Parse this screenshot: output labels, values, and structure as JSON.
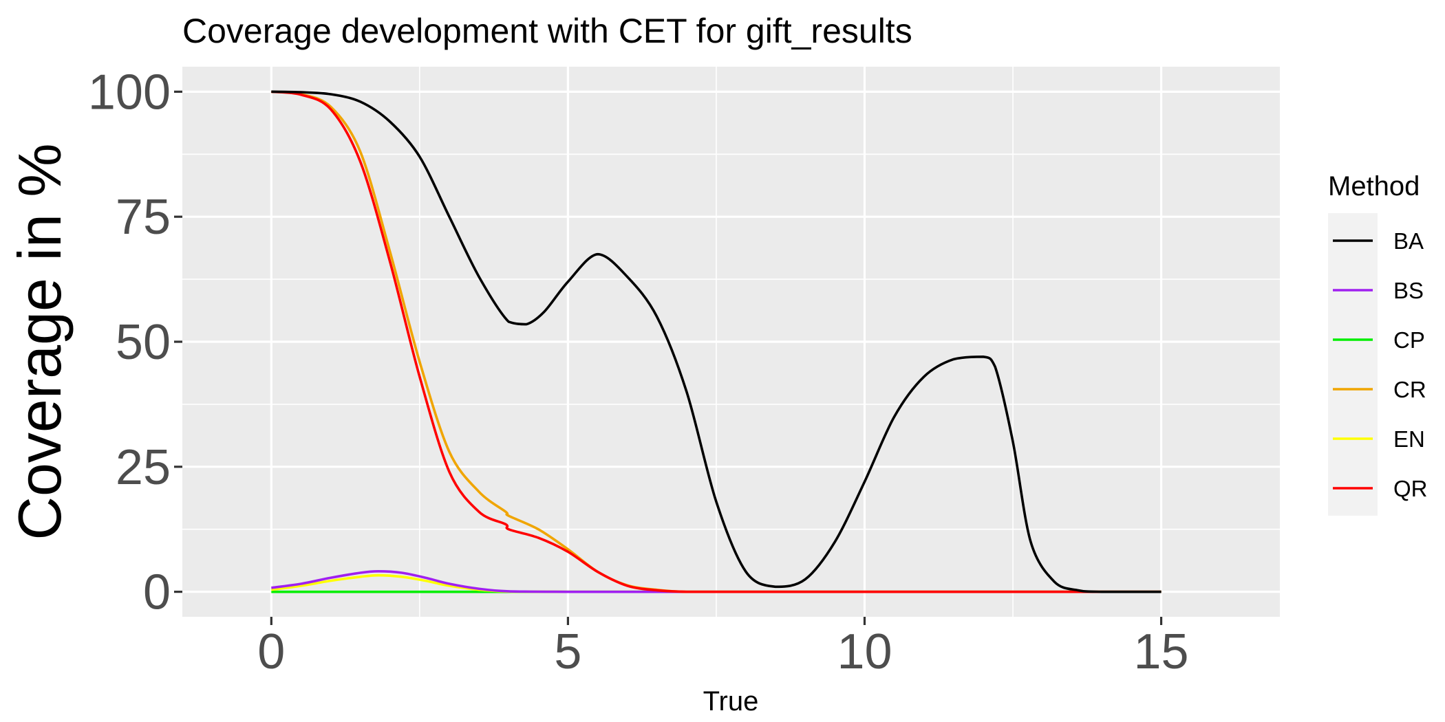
{
  "chart_data": {
    "type": "line",
    "title": "Coverage development with CET for gift_results",
    "xlabel": "True",
    "ylabel": "Coverage in %",
    "xlim": [
      -1.5,
      17.0
    ],
    "ylim": [
      -5,
      105
    ],
    "xticks": [
      0,
      5,
      10,
      15
    ],
    "yticks": [
      0,
      25,
      50,
      75,
      100
    ],
    "grid": true,
    "legend_title": "Method",
    "legend_position": "right",
    "series": [
      {
        "name": "BA",
        "color": "#000000",
        "x": [
          0,
          0.5,
          1.0,
          1.5,
          2.0,
          2.5,
          3.0,
          3.5,
          4.0,
          4.3,
          4.6,
          5.0,
          5.5,
          6.0,
          6.5,
          7.0,
          7.5,
          8.0,
          8.5,
          9.0,
          9.5,
          10.0,
          10.5,
          11.0,
          11.5,
          12.0,
          12.2,
          12.5,
          12.8,
          13.2,
          13.6,
          14.0,
          15.0
        ],
        "y": [
          100,
          99.9,
          99.5,
          98,
          94,
          87,
          75,
          63,
          54,
          53.5,
          56,
          62,
          67.5,
          63,
          55,
          40,
          18,
          4,
          1,
          2.5,
          10,
          22,
          35,
          43,
          46.5,
          47,
          45,
          30,
          10,
          2,
          0.3,
          0,
          0
        ]
      },
      {
        "name": "BS",
        "color": "#a020f0",
        "x": [
          0,
          0.5,
          1.0,
          1.5,
          1.8,
          2.2,
          2.6,
          3.0,
          3.5,
          4.0,
          5.0,
          6.0,
          8.0,
          15.0
        ],
        "y": [
          0.8,
          1.6,
          2.8,
          3.8,
          4.1,
          3.8,
          2.8,
          1.6,
          0.6,
          0.1,
          0,
          0,
          0,
          0
        ]
      },
      {
        "name": "CP",
        "color": "#00ee00",
        "x": [
          0,
          15.0
        ],
        "y": [
          0,
          0
        ]
      },
      {
        "name": "CR",
        "color": "#f0a500",
        "x": [
          0,
          0.5,
          1.0,
          1.5,
          2.0,
          2.5,
          3.0,
          3.5,
          3.95,
          4.0,
          4.5,
          5.0,
          5.5,
          6.0,
          6.5,
          7.0,
          8.0,
          15.0
        ],
        "y": [
          100,
          99.5,
          97,
          88,
          68,
          46,
          28,
          20,
          16,
          15.2,
          12.5,
          8.5,
          4,
          1.3,
          0.4,
          0,
          0,
          0
        ]
      },
      {
        "name": "EN",
        "color": "#ffff00",
        "x": [
          0,
          0.5,
          1.0,
          1.5,
          1.8,
          2.2,
          2.6,
          3.0,
          3.5,
          4.0,
          5.0,
          6.0,
          8.0,
          15.0
        ],
        "y": [
          0.4,
          1.2,
          2.2,
          3.0,
          3.3,
          3.0,
          2.2,
          1.2,
          0.4,
          0.05,
          0,
          0,
          0,
          0
        ]
      },
      {
        "name": "QR",
        "color": "#ff0000",
        "x": [
          0,
          0.5,
          1.0,
          1.5,
          2.0,
          2.5,
          3.0,
          3.5,
          3.95,
          4.0,
          4.5,
          5.0,
          5.5,
          6.0,
          6.5,
          7.0,
          8.0,
          15.0
        ],
        "y": [
          100,
          99.4,
          96.5,
          86,
          66,
          43,
          24,
          16,
          13.5,
          12.5,
          10.8,
          8,
          4,
          1.2,
          0.3,
          0,
          0,
          0
        ]
      }
    ]
  }
}
